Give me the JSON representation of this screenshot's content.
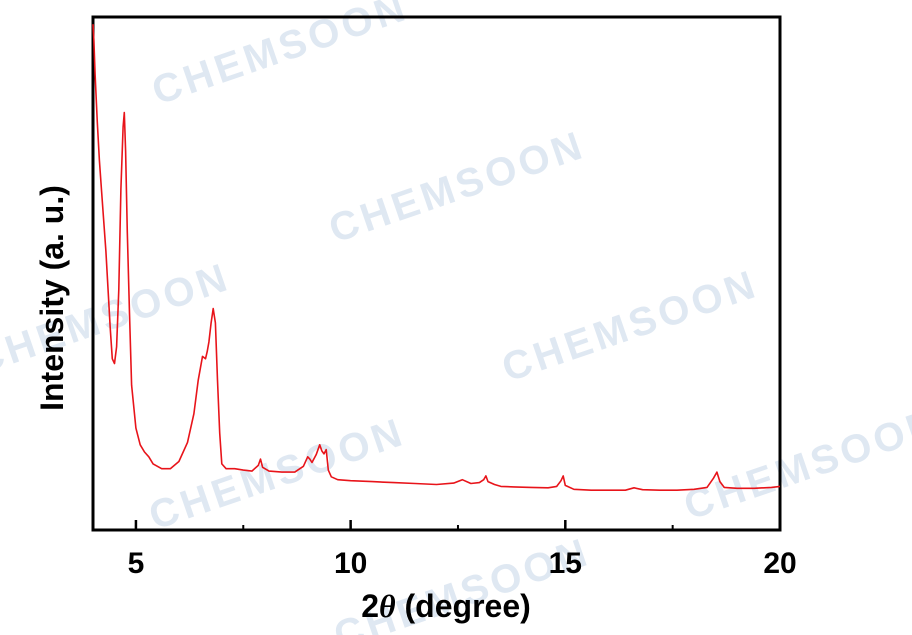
{
  "watermark": "CHEMSOON",
  "colors": {
    "series": "#e8141a",
    "axis": "#000000",
    "watermark": "#dfe8f2"
  },
  "chart_data": {
    "type": "line",
    "xlabel_prefix": "2",
    "xlabel_symbol": "θ",
    "xlabel_suffix": " (degree)",
    "ylabel": "Intensity (a. u.)",
    "xlim": [
      4,
      20
    ],
    "ylim": [
      0,
      100
    ],
    "xticks": [
      5,
      10,
      15,
      20
    ],
    "xtick_labels": [
      "5",
      "10",
      "15",
      "20"
    ],
    "y_tick_labels_shown": false,
    "grid": false,
    "series": [
      {
        "color": "#e8141a",
        "x": [
          4.0,
          4.02,
          4.05,
          4.1,
          4.15,
          4.2,
          4.3,
          4.4,
          4.45,
          4.5,
          4.55,
          4.6,
          4.65,
          4.7,
          4.73,
          4.76,
          4.8,
          4.85,
          4.9,
          5.0,
          5.1,
          5.2,
          5.3,
          5.4,
          5.6,
          5.8,
          6.0,
          6.2,
          6.35,
          6.45,
          6.55,
          6.62,
          6.66,
          6.7,
          6.75,
          6.8,
          6.85,
          6.9,
          6.95,
          7.0,
          7.1,
          7.3,
          7.5,
          7.7,
          7.85,
          7.9,
          7.95,
          8.1,
          8.4,
          8.7,
          8.9,
          9.0,
          9.05,
          9.1,
          9.2,
          9.28,
          9.33,
          9.38,
          9.43,
          9.48,
          9.55,
          9.7,
          10.0,
          10.5,
          11.0,
          11.5,
          12.0,
          12.4,
          12.6,
          12.8,
          13.0,
          13.1,
          13.15,
          13.2,
          13.35,
          13.5,
          13.8,
          14.2,
          14.6,
          14.8,
          14.9,
          14.95,
          15.0,
          15.2,
          15.6,
          16.0,
          16.4,
          16.6,
          16.8,
          17.2,
          17.6,
          18.0,
          18.3,
          18.45,
          18.53,
          18.6,
          18.7,
          19.0,
          19.4,
          19.8,
          20.0
        ],
        "y": [
          98.5,
          95.0,
          88.0,
          78.0,
          70.0,
          63.5,
          51.0,
          35.0,
          28.5,
          27.5,
          31.0,
          43.0,
          64.0,
          77.0,
          80.0,
          72.0,
          55.0,
          38.0,
          23.0,
          14.0,
          10.5,
          9.0,
          8.0,
          6.5,
          5.5,
          5.5,
          7.0,
          11.0,
          17.0,
          24.0,
          29.0,
          28.5,
          30.0,
          32.0,
          36.0,
          39.0,
          36.0,
          24.0,
          13.0,
          6.5,
          5.5,
          5.5,
          5.2,
          5.0,
          6.2,
          7.5,
          5.8,
          5.0,
          4.8,
          4.8,
          6.0,
          8.0,
          7.5,
          6.8,
          8.5,
          10.5,
          9.2,
          8.6,
          9.5,
          5.2,
          3.8,
          3.2,
          3.0,
          2.8,
          2.6,
          2.4,
          2.2,
          2.5,
          3.2,
          2.4,
          2.6,
          3.2,
          4.0,
          2.8,
          2.2,
          1.8,
          1.7,
          1.6,
          1.5,
          1.8,
          3.0,
          4.0,
          2.0,
          1.2,
          1.0,
          1.0,
          1.0,
          1.5,
          1.1,
          1.0,
          1.0,
          1.2,
          1.6,
          3.5,
          4.8,
          2.8,
          1.6,
          1.4,
          1.4,
          1.6,
          1.8
        ]
      }
    ]
  }
}
